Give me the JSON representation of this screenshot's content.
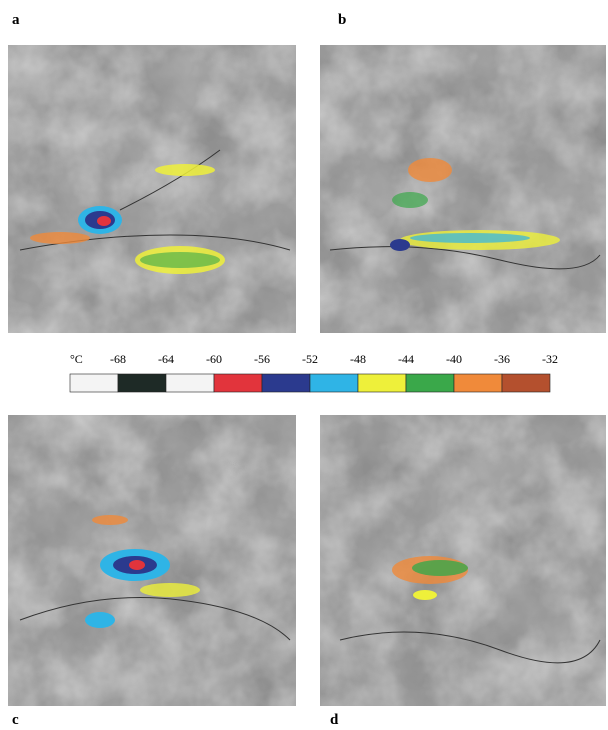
{
  "panels": [
    {
      "label": "a"
    },
    {
      "label": "b"
    },
    {
      "label": "c"
    },
    {
      "label": "d"
    }
  ],
  "colorbar": {
    "unit": "°C",
    "ticks": [
      -68,
      -64,
      -60,
      -56,
      -52,
      -48,
      -44,
      -40,
      -36,
      -32
    ],
    "colors": [
      "#f4f4f4",
      "#1e2a26",
      "#f4f4f4",
      "#e2343c",
      "#2b3a8e",
      "#2fb4e6",
      "#eef03a",
      "#3aa84a",
      "#f08a3a",
      "#b4502e"
    ]
  }
}
